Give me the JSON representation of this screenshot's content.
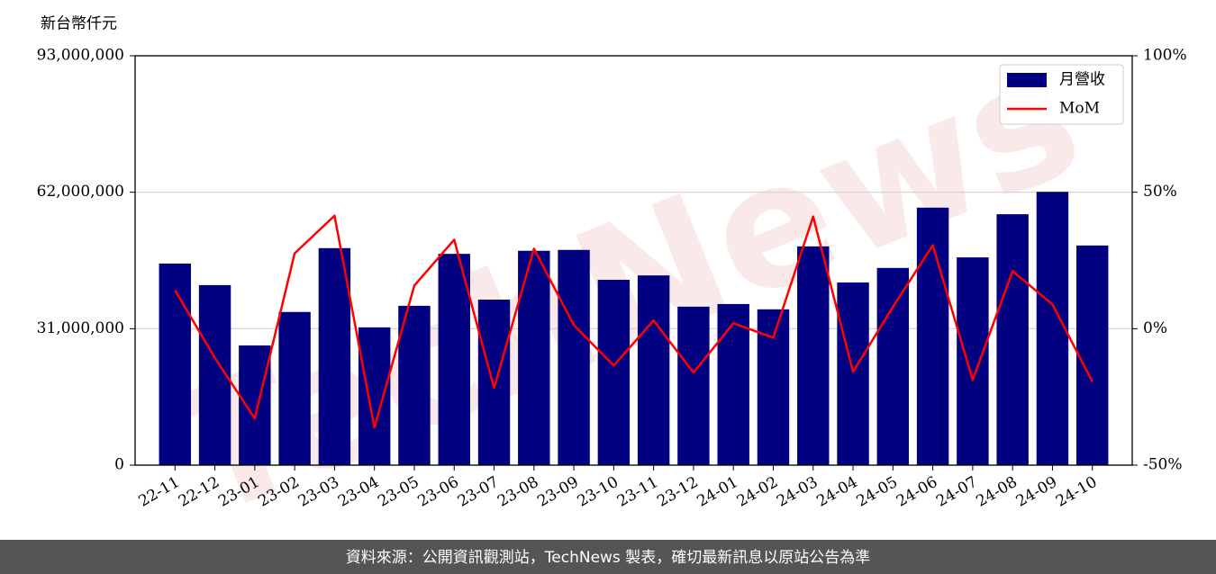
{
  "chart_data": {
    "type": "bar-line",
    "y_label": "新台幣仟元",
    "categories": [
      "22-11",
      "22-12",
      "23-01",
      "23-02",
      "23-03",
      "23-04",
      "23-05",
      "23-06",
      "23-07",
      "23-08",
      "23-09",
      "23-10",
      "23-11",
      "23-12",
      "24-01",
      "24-02",
      "24-03",
      "24-04",
      "24-05",
      "24-06",
      "24-07",
      "24-08",
      "24-09",
      "24-10"
    ],
    "series": [
      {
        "name": "月營收",
        "type": "bar",
        "color": "#000080",
        "values": [
          45800000,
          40900000,
          27200000,
          34800000,
          49300000,
          31300000,
          36200000,
          48000000,
          37600000,
          48700000,
          48900000,
          42100000,
          43100000,
          36000000,
          36600000,
          35400000,
          49700000,
          41500000,
          44800000,
          58500000,
          47200000,
          57000000,
          62100000,
          49900000
        ]
      },
      {
        "name": "MoM",
        "type": "line",
        "color": "#ff0000",
        "axis": "y2",
        "values": [
          14.1,
          -10.7,
          -32.9,
          27.6,
          41.4,
          -36.2,
          15.8,
          32.6,
          -21.7,
          29.3,
          1.3,
          -13.5,
          3.0,
          -16.1,
          2.0,
          -3.3,
          41.1,
          -15.8,
          8.0,
          30.6,
          -18.8,
          21.1,
          8.9,
          -19.4
        ]
      }
    ],
    "ylim": [
      0,
      93000000
    ],
    "yticks": [
      0,
      {
        "value": 31000000,
        "label": "31,000,000"
      },
      {
        "value": 62000000,
        "label": "62,000,000"
      },
      {
        "value": 93000000,
        "label": "93,000,000"
      }
    ],
    "y2lim": [
      -50,
      100
    ],
    "y2ticks": [
      {
        "value": -50,
        "label": "-50%"
      },
      {
        "value": 0,
        "label": "0%"
      },
      {
        "value": 50,
        "label": "50%"
      },
      {
        "value": 100,
        "label": "100%"
      }
    ],
    "grid": true,
    "legend": "upper-right"
  },
  "watermark": "TechNews",
  "footer": "資料來源：公開資訊觀測站，TechNews 製表，確切最新訊息以原站公告為準"
}
